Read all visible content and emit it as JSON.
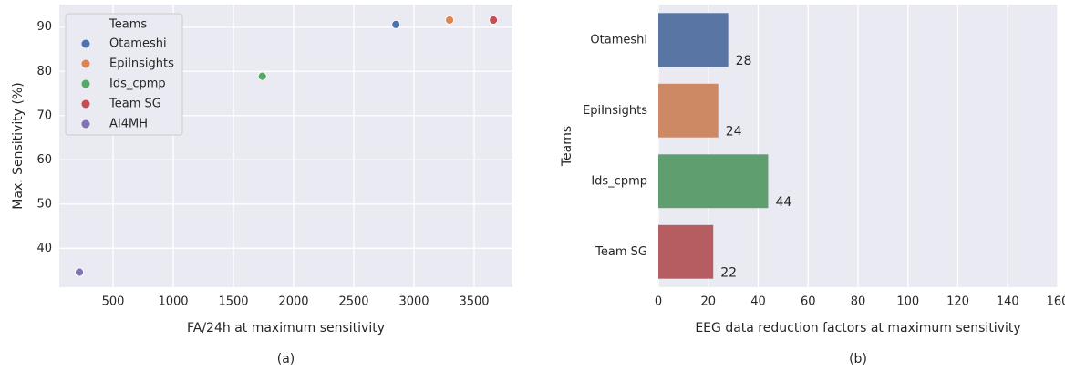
{
  "chart_data": [
    {
      "type": "scatter",
      "x_label": "FA/24h at maximum sensitivity",
      "y_label": "Max. Sensitivity (%)",
      "caption": "(a)",
      "legend_title": "Teams",
      "legend": "upper left",
      "grid": true,
      "xlim": [
        53,
        3818
      ],
      "xticks": [
        500,
        1000,
        1500,
        2000,
        2500,
        3000,
        3500
      ],
      "ylim": [
        31.2,
        95.1
      ],
      "yticks": [
        40,
        50,
        60,
        70,
        80,
        90
      ],
      "series": [
        {
          "name": "Otameshi",
          "color": "#4c72b0",
          "x": [
            2850
          ],
          "values": [
            90.6
          ]
        },
        {
          "name": "EpiInsights",
          "color": "#dd8452",
          "x": [
            3296
          ],
          "values": [
            91.6
          ]
        },
        {
          "name": "Ids_cpmp",
          "color": "#55a868",
          "x": [
            1740
          ],
          "values": [
            78.9
          ]
        },
        {
          "name": "Team SG",
          "color": "#c44e52",
          "x": [
            3660
          ],
          "values": [
            91.6
          ]
        },
        {
          "name": "AI4MH",
          "color": "#8172b3",
          "x": [
            220
          ],
          "values": [
            34.6
          ]
        }
      ]
    },
    {
      "type": "hbar",
      "x_label": "EEG data reduction factors at maximum sensitivity",
      "y_label": "Teams",
      "caption": "(b)",
      "grid": true,
      "categories": [
        "Otameshi",
        "EpiInsights",
        "Ids_cpmp",
        "Team SG"
      ],
      "values": [
        28,
        24,
        44,
        22
      ],
      "colors": [
        "#5975a4",
        "#cc8963",
        "#5f9e6e",
        "#b55d60"
      ],
      "xlim": [
        0,
        160
      ],
      "xticks": [
        0,
        20,
        40,
        60,
        80,
        100,
        120,
        140,
        160
      ]
    }
  ]
}
